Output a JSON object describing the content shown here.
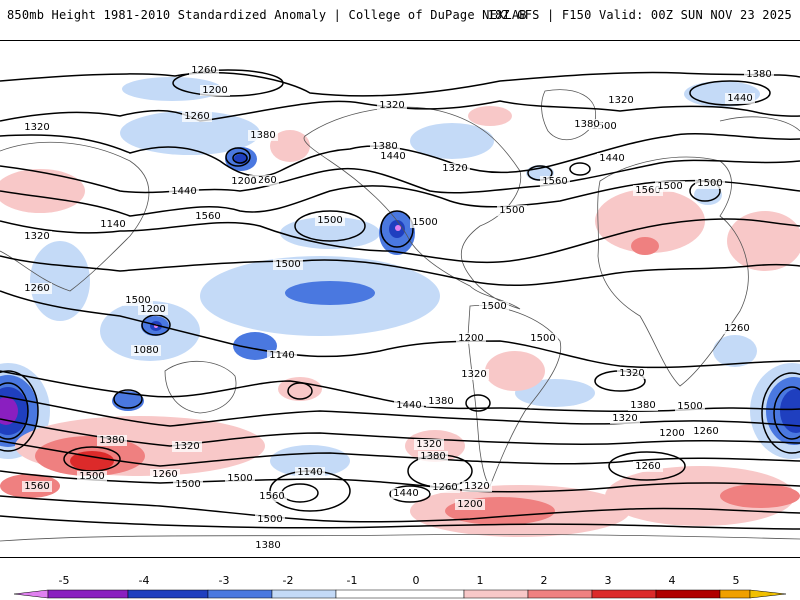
{
  "header": {
    "title_left": "850mb Height 1981-2010 Standardized Anomaly | College of DuPage NEXLAB",
    "title_right": "18Z GFS | F150 Valid: 00Z SUN NOV 23 2025"
  },
  "colors": {
    "neg5": "#e080f0",
    "neg4": "#8a1fc0",
    "neg3": "#1f3fbf",
    "neg2": "#4a78e0",
    "neg1": "#c4daf7",
    "zero": "#ffffff",
    "pos1": "#f8c8c8",
    "pos2": "#ef8080",
    "pos3": "#dc2a2a",
    "pos4": "#b00000",
    "pos5": "#f0a000",
    "land": "#555555",
    "contour": "#000000"
  },
  "colorbar": {
    "ticks": [
      "-5",
      "-4",
      "-3",
      "-2",
      "-1",
      "0",
      "1",
      "2",
      "3",
      "4",
      "5"
    ]
  },
  "contour_labels": [
    "1260",
    "1200",
    "1260",
    "1320",
    "1320",
    "1380",
    "1440",
    "1500",
    "1560",
    "1320",
    "1380",
    "1440",
    "1500",
    "1560",
    "1320",
    "1380",
    "1440",
    "1500",
    "1260",
    "1200",
    "1500",
    "1500",
    "1500",
    "1500",
    "1500",
    "1500",
    "1500",
    "1560",
    "1440",
    "1380",
    "1320",
    "1260",
    "1200",
    "1140",
    "1080",
    "1140",
    "1200",
    "1260",
    "1320",
    "1320",
    "1380",
    "1440",
    "1500",
    "1380",
    "1320",
    "1260",
    "1200",
    "1140",
    "1260",
    "1320",
    "1380",
    "1440",
    "1200",
    "1260",
    "1320",
    "1380",
    "1500",
    "1560",
    "1500",
    "1500",
    "1260",
    "1320",
    "1380",
    "1500",
    "1560"
  ]
}
